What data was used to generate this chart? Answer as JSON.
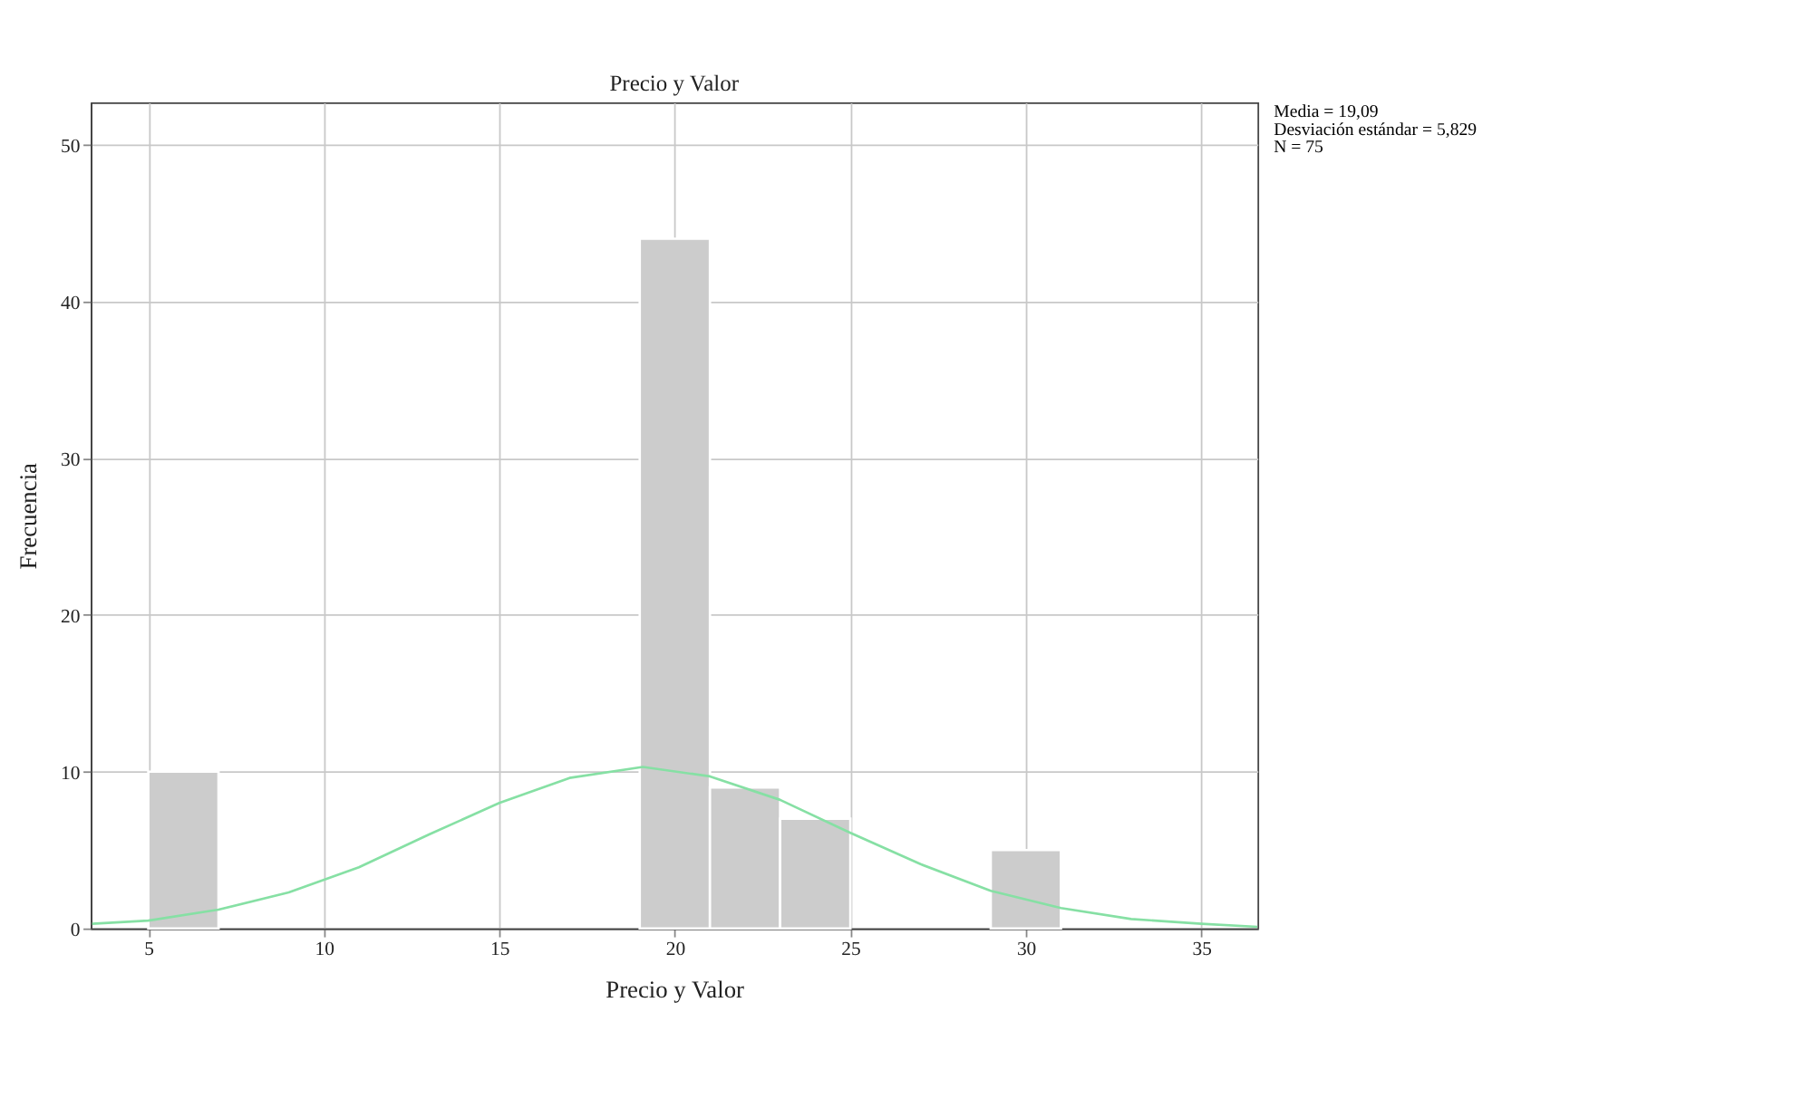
{
  "chart_data": {
    "type": "histogram",
    "title": "Precio y Valor",
    "xlabel": "Precio y Valor",
    "ylabel": "Frecuencia",
    "bins": [
      5,
      7,
      9,
      11,
      13,
      15,
      17,
      19,
      21,
      23,
      25,
      27,
      29,
      31
    ],
    "values": [
      10,
      0,
      0,
      0,
      0,
      0,
      0,
      44,
      9,
      7,
      0,
      0,
      5
    ],
    "color": "#cccccc",
    "series": [
      {
        "type": "line",
        "color": "#86e0a4",
        "x": [
          3.4,
          5,
          7,
          9,
          11,
          13,
          15,
          17,
          19.09,
          21,
          23,
          25,
          27,
          29,
          31,
          33,
          35,
          36.6
        ],
        "values": [
          0.3,
          0.5,
          1.2,
          2.3,
          3.9,
          6,
          8,
          9.6,
          10.3,
          9.7,
          8.2,
          6.1,
          4.1,
          2.4,
          1.3,
          0.6,
          0.3,
          0.1
        ]
      }
    ],
    "xlim": [
      3.36,
      36.6
    ],
    "xticks": [
      5,
      10,
      15,
      20,
      25,
      30,
      35
    ],
    "ylim": [
      0,
      52.7
    ],
    "yticks": [
      0,
      10,
      20,
      30,
      40,
      50
    ],
    "grid": true,
    "annotations": [
      "Media = 19,09",
      "Desviación estándar = 5,829",
      "N = 75"
    ]
  }
}
